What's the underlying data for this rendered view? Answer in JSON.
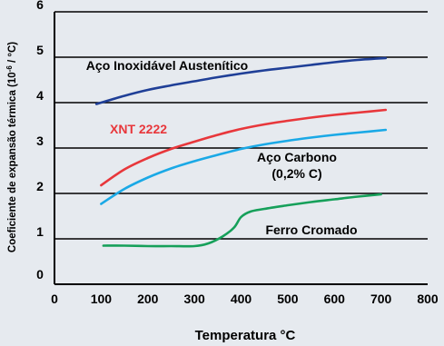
{
  "chart_data": {
    "type": "line",
    "title": "",
    "xlabel": "Temperatura °C",
    "ylabel_main": "Coeficiente de expansão térmica (10",
    "ylabel_sup": "-6",
    "ylabel_end": " / °C)",
    "xlim": [
      0,
      800
    ],
    "ylim": [
      0,
      6
    ],
    "x_ticks": [
      "0",
      "100",
      "200",
      "300",
      "400",
      "500",
      "600",
      "700",
      "800"
    ],
    "y_ticks": [
      "0",
      "1",
      "2",
      "3",
      "4",
      "5",
      "6"
    ],
    "grid": "horizontal",
    "series": [
      {
        "name": "Aço Inoxidável Austenítico",
        "color": "#1f3f97",
        "label_lines": [
          "Aço Inoxidável Austenítico"
        ],
        "x": [
          90,
          150,
          200,
          250,
          300,
          350,
          400,
          450,
          500,
          550,
          600,
          650,
          710
        ],
        "y": [
          3.97,
          4.15,
          4.28,
          4.38,
          4.47,
          4.56,
          4.64,
          4.71,
          4.77,
          4.83,
          4.89,
          4.94,
          4.98
        ]
      },
      {
        "name": "XNT 2222",
        "color": "#e8373b",
        "label_lines": [
          "XNT 2222"
        ],
        "x": [
          100,
          150,
          200,
          250,
          300,
          350,
          400,
          450,
          500,
          550,
          600,
          650,
          710
        ],
        "y": [
          2.18,
          2.53,
          2.78,
          2.98,
          3.14,
          3.29,
          3.42,
          3.52,
          3.6,
          3.67,
          3.73,
          3.78,
          3.84
        ]
      },
      {
        "name": "Aço Carbono (0,2% C)",
        "color": "#1aa9e6",
        "label_lines": [
          "Aço Carbono",
          "(0,2% C)"
        ],
        "x": [
          100,
          150,
          200,
          250,
          300,
          350,
          400,
          450,
          500,
          550,
          600,
          650,
          710
        ],
        "y": [
          1.77,
          2.1,
          2.35,
          2.55,
          2.71,
          2.85,
          2.98,
          3.08,
          3.16,
          3.23,
          3.29,
          3.34,
          3.4
        ]
      },
      {
        "name": "Ferro Cromado",
        "color": "#16a05a",
        "label_lines": [
          "Ferro Cromado"
        ],
        "x": [
          105,
          150,
          200,
          250,
          300,
          330,
          360,
          385,
          400,
          420,
          450,
          500,
          550,
          600,
          650,
          700
        ],
        "y": [
          0.85,
          0.85,
          0.84,
          0.84,
          0.84,
          0.9,
          1.05,
          1.25,
          1.48,
          1.6,
          1.66,
          1.74,
          1.81,
          1.87,
          1.93,
          1.98
        ]
      }
    ]
  }
}
